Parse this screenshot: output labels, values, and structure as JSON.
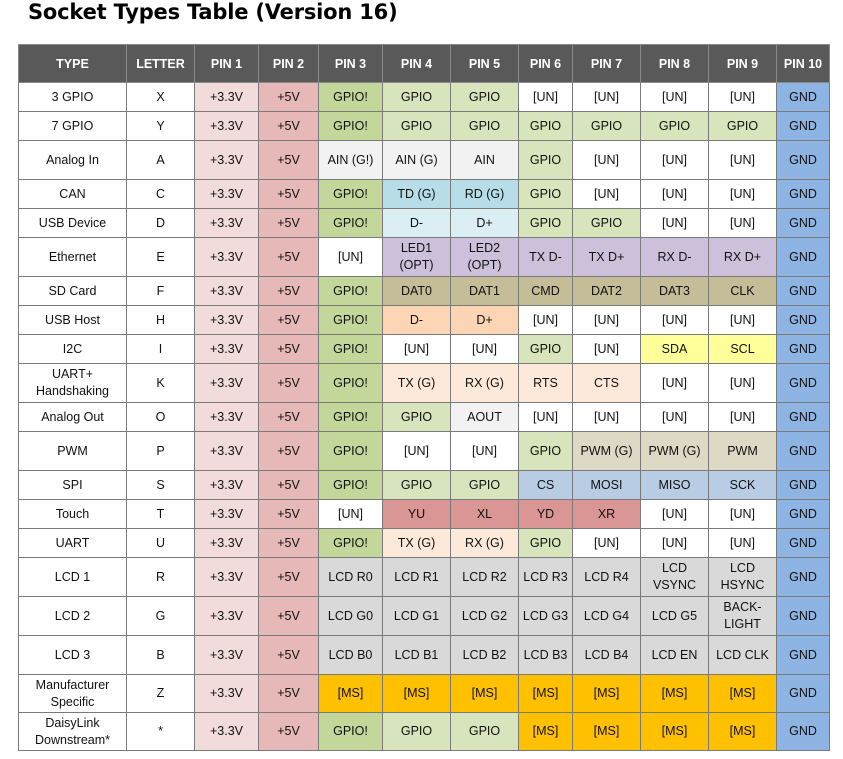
{
  "title": "Socket Types Table (Version 16)",
  "headers": [
    "TYPE",
    "LETTER",
    "PIN 1",
    "PIN 2",
    "PIN 3",
    "PIN 4",
    "PIN 5",
    "PIN 6",
    "PIN 7",
    "PIN 8",
    "PIN 9",
    "PIN 10"
  ],
  "colors": {
    "pin1_3v3": "#f2dcdb",
    "pin2_5v": "#e6b9b8",
    "gnd": "#8db4e2",
    "gpio_pin3": "#c4d79b",
    "gpio": "#d8e4bc",
    "unused": "#ffffff",
    "usb_device": "#daeef3",
    "can": "#b7dee8",
    "ethernet": "#ccc0da",
    "sd_card": "#ddd9c4",
    "usb_host": "#fcd5b4",
    "i2c": "#ffff99",
    "uart": "#fde9d9",
    "spi": "#b8cce4",
    "touch": "#da9694",
    "lcd": "#d9d9d9",
    "manufacturer": "#ffc000"
  },
  "rows": [
    {
      "type": "3 GPIO",
      "letter": "X",
      "pins": [
        "+3.3V",
        "+5V",
        "GPIO!",
        "GPIO",
        "GPIO",
        "[UN]",
        "[UN]",
        "[UN]",
        "[UN]",
        "GND"
      ]
    },
    {
      "type": "7 GPIO",
      "letter": "Y",
      "pins": [
        "+3.3V",
        "+5V",
        "GPIO!",
        "GPIO",
        "GPIO",
        "GPIO",
        "GPIO",
        "GPIO",
        "GPIO",
        "GND"
      ]
    },
    {
      "type": "Analog In",
      "letter": "A",
      "pins": [
        "+3.3V",
        "+5V",
        "AIN (G!)",
        "AIN (G)",
        "AIN",
        "GPIO",
        "[UN]",
        "[UN]",
        "[UN]",
        "GND"
      ]
    },
    {
      "type": "CAN",
      "letter": "C",
      "pins": [
        "+3.3V",
        "+5V",
        "GPIO!",
        "TD (G)",
        "RD (G)",
        "GPIO",
        "[UN]",
        "[UN]",
        "[UN]",
        "GND"
      ]
    },
    {
      "type": "USB Device",
      "letter": "D",
      "pins": [
        "+3.3V",
        "+5V",
        "GPIO!",
        "D-",
        "D+",
        "GPIO",
        "GPIO",
        "[UN]",
        "[UN]",
        "GND"
      ]
    },
    {
      "type": "Ethernet",
      "letter": "E",
      "pins": [
        "+3.3V",
        "+5V",
        "[UN]",
        "LED1 (OPT)",
        "LED2 (OPT)",
        "TX D-",
        "TX D+",
        "RX D-",
        "RX D+",
        "GND"
      ]
    },
    {
      "type": "SD Card",
      "letter": "F",
      "pins": [
        "+3.3V",
        "+5V",
        "GPIO!",
        "DAT0",
        "DAT1",
        "CMD",
        "DAT2",
        "DAT3",
        "CLK",
        "GND"
      ]
    },
    {
      "type": "USB Host",
      "letter": "H",
      "pins": [
        "+3.3V",
        "+5V",
        "GPIO!",
        "D-",
        "D+",
        "[UN]",
        "[UN]",
        "[UN]",
        "[UN]",
        "GND"
      ]
    },
    {
      "type": "I2C",
      "letter": "I",
      "pins": [
        "+3.3V",
        "+5V",
        "GPIO!",
        "[UN]",
        "[UN]",
        "GPIO",
        "[UN]",
        "SDA",
        "SCL",
        "GND"
      ]
    },
    {
      "type": "UART+ Handshaking",
      "letter": "K",
      "pins": [
        "+3.3V",
        "+5V",
        "GPIO!",
        "TX (G)",
        "RX (G)",
        "RTS",
        "CTS",
        "[UN]",
        "[UN]",
        "GND"
      ]
    },
    {
      "type": "Analog Out",
      "letter": "O",
      "pins": [
        "+3.3V",
        "+5V",
        "GPIO!",
        "GPIO",
        "AOUT",
        "[UN]",
        "[UN]",
        "[UN]",
        "[UN]",
        "GND"
      ]
    },
    {
      "type": "PWM",
      "letter": "P",
      "pins": [
        "+3.3V",
        "+5V",
        "GPIO!",
        "[UN]",
        "[UN]",
        "GPIO",
        "PWM (G)",
        "PWM (G)",
        "PWM",
        "GND"
      ]
    },
    {
      "type": "SPI",
      "letter": "S",
      "pins": [
        "+3.3V",
        "+5V",
        "GPIO!",
        "GPIO",
        "GPIO",
        "CS",
        "MOSI",
        "MISO",
        "SCK",
        "GND"
      ]
    },
    {
      "type": "Touch",
      "letter": "T",
      "pins": [
        "+3.3V",
        "+5V",
        "[UN]",
        "YU",
        "XL",
        "YD",
        "XR",
        "[UN]",
        "[UN]",
        "GND"
      ]
    },
    {
      "type": "UART",
      "letter": "U",
      "pins": [
        "+3.3V",
        "+5V",
        "GPIO!",
        "TX (G)",
        "RX (G)",
        "GPIO",
        "[UN]",
        "[UN]",
        "[UN]",
        "GND"
      ]
    },
    {
      "type": "LCD 1",
      "letter": "R",
      "pins": [
        "+3.3V",
        "+5V",
        "LCD R0",
        "LCD R1",
        "LCD R2",
        "LCD R3",
        "LCD R4",
        "LCD VSYNC",
        "LCD HSYNC",
        "GND"
      ]
    },
    {
      "type": "LCD 2",
      "letter": "G",
      "pins": [
        "+3.3V",
        "+5V",
        "LCD G0",
        "LCD G1",
        "LCD G2",
        "LCD G3",
        "LCD G4",
        "LCD G5",
        "BACK-LIGHT",
        "GND"
      ]
    },
    {
      "type": "LCD 3",
      "letter": "B",
      "pins": [
        "+3.3V",
        "+5V",
        "LCD B0",
        "LCD B1",
        "LCD B2",
        "LCD B3",
        "LCD B4",
        "LCD EN",
        "LCD CLK",
        "GND"
      ]
    },
    {
      "type": "Manufacturer Specific",
      "letter": "Z",
      "pins": [
        "+3.3V",
        "+5V",
        "[MS]",
        "[MS]",
        "[MS]",
        "[MS]",
        "[MS]",
        "[MS]",
        "[MS]",
        "GND"
      ]
    },
    {
      "type": "DaisyLink Downstream*",
      "letter": "*",
      "pins": [
        "+3.3V",
        "+5V",
        "GPIO!",
        "GPIO",
        "GPIO",
        "[MS]",
        "[MS]",
        "[MS]",
        "[MS]",
        "GND"
      ]
    }
  ]
}
